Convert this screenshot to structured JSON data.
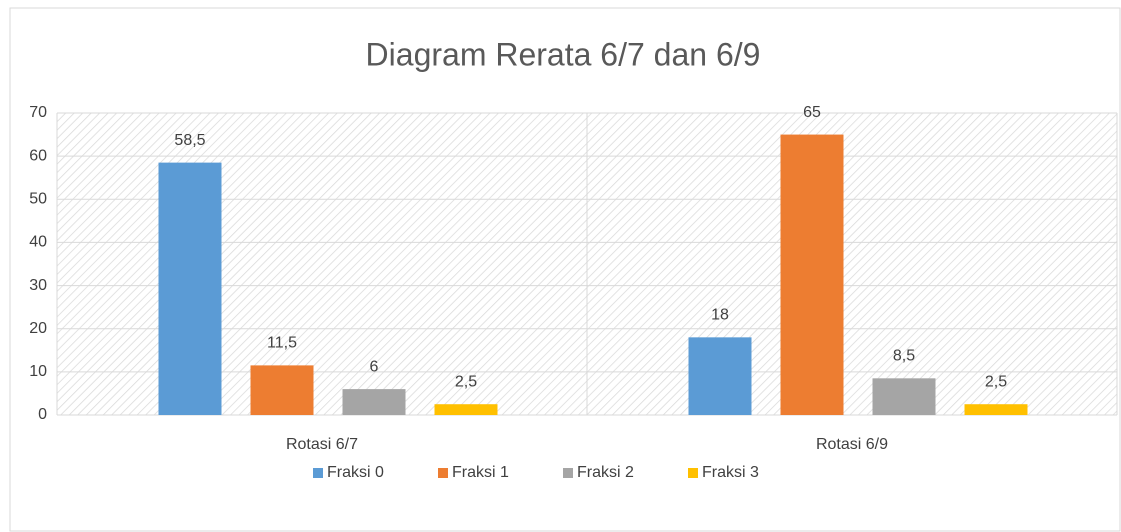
{
  "chart_data": {
    "type": "bar",
    "title": "Diagram Rerata 6/7 dan 6/9",
    "categories": [
      "Rotasi 6/7",
      "Rotasi 6/9"
    ],
    "series": [
      {
        "name": "Fraksi 0",
        "color": "#5b9bd5",
        "values": [
          58.5,
          18
        ],
        "value_labels": [
          "58,5",
          "18"
        ]
      },
      {
        "name": "Fraksi 1",
        "color": "#ed7d31",
        "values": [
          11.5,
          65
        ],
        "value_labels": [
          "11,5",
          "65"
        ]
      },
      {
        "name": "Fraksi 2",
        "color": "#a5a5a5",
        "values": [
          6,
          8.5
        ],
        "value_labels": [
          "6",
          "8,5"
        ]
      },
      {
        "name": "Fraksi 3",
        "color": "#ffc000",
        "values": [
          2.5,
          2.5
        ],
        "value_labels": [
          "2,5",
          "2,5"
        ]
      }
    ],
    "ylim": [
      0,
      70
    ],
    "yticks": [
      0,
      10,
      20,
      30,
      40,
      50,
      60,
      70
    ],
    "grid": true,
    "legend": "bottom"
  }
}
